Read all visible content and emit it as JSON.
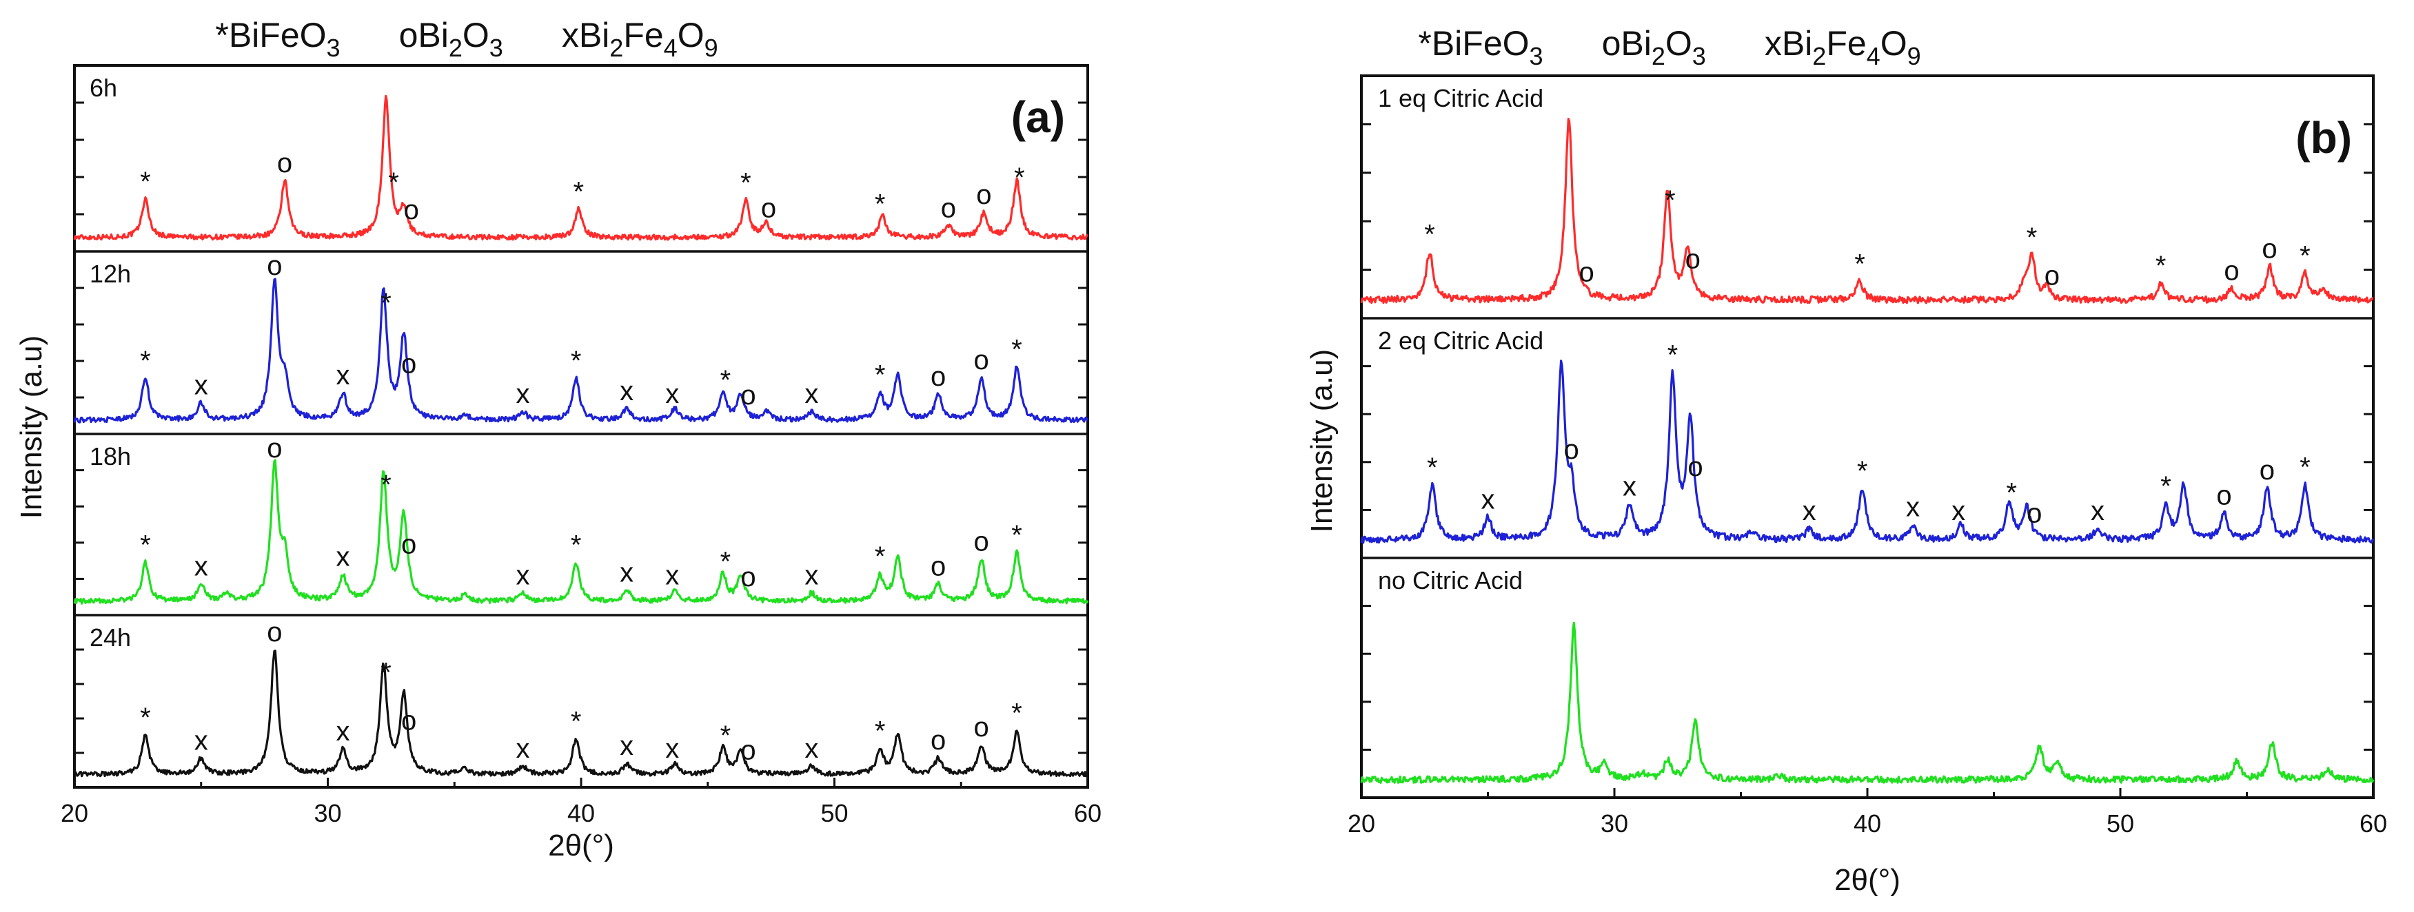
{
  "legend": [
    "*BiFeO3",
    "oBi2O3",
    "xBi2Fe4O9"
  ],
  "legend_parts": [
    {
      "symbol": "*",
      "formula": [
        [
          "Bi",
          ""
        ],
        [
          "FeO",
          "3"
        ]
      ]
    },
    {
      "symbol": "o",
      "formula": [
        [
          "Bi",
          "2"
        ],
        [
          "O",
          "3"
        ]
      ]
    },
    {
      "symbol": "x",
      "formula": [
        [
          "Bi",
          "2"
        ],
        [
          "Fe",
          "4"
        ],
        [
          "O",
          "9"
        ]
      ]
    }
  ],
  "chart_data": [
    {
      "type": "line",
      "panel": "(a)",
      "title": "",
      "xlabel": "2θ(°)",
      "ylabel": "Intensity (a.u)",
      "xlim": [
        20,
        60
      ],
      "xticks": [
        20,
        30,
        40,
        50,
        60
      ],
      "series": [
        {
          "name": "6h",
          "color": "#ff2b2b",
          "peaks": [
            [
              22.8,
              0.27
            ],
            [
              28.3,
              0.4
            ],
            [
              32.3,
              0.98
            ],
            [
              33.0,
              0.18
            ],
            [
              39.9,
              0.2
            ],
            [
              46.5,
              0.26
            ],
            [
              47.3,
              0.1
            ],
            [
              51.9,
              0.15
            ],
            [
              54.5,
              0.08
            ],
            [
              55.9,
              0.17
            ],
            [
              57.2,
              0.4
            ]
          ],
          "markers": [
            {
              "x": 22.8,
              "label": "*"
            },
            {
              "x": 28.3,
              "label": "o"
            },
            {
              "x": 32.6,
              "label": "*"
            },
            {
              "x": 33.3,
              "label": "o"
            },
            {
              "x": 39.9,
              "label": "*"
            },
            {
              "x": 46.5,
              "label": "*"
            },
            {
              "x": 47.4,
              "label": "o"
            },
            {
              "x": 51.8,
              "label": "*"
            },
            {
              "x": 54.5,
              "label": "o"
            },
            {
              "x": 55.9,
              "label": "o"
            },
            {
              "x": 57.3,
              "label": "*"
            }
          ]
        },
        {
          "name": "12h",
          "color": "#1e22d6",
          "peaks": [
            [
              22.8,
              0.3
            ],
            [
              25.0,
              0.12
            ],
            [
              27.9,
              0.98
            ],
            [
              28.3,
              0.25
            ],
            [
              30.6,
              0.18
            ],
            [
              32.2,
              0.92
            ],
            [
              33.0,
              0.6
            ],
            [
              35.4,
              0.04
            ],
            [
              37.7,
              0.06
            ],
            [
              39.8,
              0.3
            ],
            [
              41.8,
              0.08
            ],
            [
              43.7,
              0.08
            ],
            [
              45.6,
              0.2
            ],
            [
              46.3,
              0.18
            ],
            [
              47.3,
              0.06
            ],
            [
              49.1,
              0.06
            ],
            [
              51.8,
              0.18
            ],
            [
              52.5,
              0.32
            ],
            [
              54.1,
              0.18
            ],
            [
              55.8,
              0.3
            ],
            [
              57.2,
              0.38
            ]
          ],
          "markers": [
            {
              "x": 22.8,
              "label": "*"
            },
            {
              "x": 25.0,
              "label": "x"
            },
            {
              "x": 27.9,
              "label": "o"
            },
            {
              "x": 30.6,
              "label": "x"
            },
            {
              "x": 32.3,
              "label": "*"
            },
            {
              "x": 33.2,
              "label": "o"
            },
            {
              "x": 37.7,
              "label": "x"
            },
            {
              "x": 39.8,
              "label": "*"
            },
            {
              "x": 41.8,
              "label": "x"
            },
            {
              "x": 43.6,
              "label": "x"
            },
            {
              "x": 45.7,
              "label": "*"
            },
            {
              "x": 46.6,
              "label": "o"
            },
            {
              "x": 49.1,
              "label": "x"
            },
            {
              "x": 51.8,
              "label": "*"
            },
            {
              "x": 54.1,
              "label": "o"
            },
            {
              "x": 55.8,
              "label": "o"
            },
            {
              "x": 57.2,
              "label": "*"
            }
          ]
        },
        {
          "name": "18h",
          "color": "#20e020",
          "peaks": [
            [
              22.8,
              0.28
            ],
            [
              25.0,
              0.12
            ],
            [
              26.0,
              0.05
            ],
            [
              27.9,
              0.98
            ],
            [
              28.3,
              0.3
            ],
            [
              30.6,
              0.18
            ],
            [
              32.2,
              0.92
            ],
            [
              33.0,
              0.62
            ],
            [
              35.4,
              0.04
            ],
            [
              37.7,
              0.06
            ],
            [
              39.8,
              0.28
            ],
            [
              41.8,
              0.08
            ],
            [
              43.7,
              0.08
            ],
            [
              45.6,
              0.2
            ],
            [
              46.3,
              0.18
            ],
            [
              49.1,
              0.06
            ],
            [
              51.8,
              0.18
            ],
            [
              52.5,
              0.32
            ],
            [
              54.1,
              0.12
            ],
            [
              55.8,
              0.3
            ],
            [
              57.2,
              0.35
            ]
          ],
          "markers": [
            {
              "x": 22.8,
              "label": "*"
            },
            {
              "x": 25.0,
              "label": "x"
            },
            {
              "x": 27.9,
              "label": "o"
            },
            {
              "x": 30.6,
              "label": "x"
            },
            {
              "x": 32.3,
              "label": "*"
            },
            {
              "x": 33.2,
              "label": "o"
            },
            {
              "x": 37.7,
              "label": "x"
            },
            {
              "x": 39.8,
              "label": "*"
            },
            {
              "x": 41.8,
              "label": "x"
            },
            {
              "x": 43.6,
              "label": "x"
            },
            {
              "x": 45.7,
              "label": "*"
            },
            {
              "x": 46.6,
              "label": "o"
            },
            {
              "x": 49.1,
              "label": "x"
            },
            {
              "x": 51.8,
              "label": "*"
            },
            {
              "x": 54.1,
              "label": "o"
            },
            {
              "x": 55.8,
              "label": "o"
            },
            {
              "x": 57.2,
              "label": "*"
            }
          ]
        },
        {
          "name": "24h",
          "color": "#111111",
          "peaks": [
            [
              22.8,
              0.3
            ],
            [
              25.0,
              0.12
            ],
            [
              27.9,
              0.95
            ],
            [
              30.6,
              0.18
            ],
            [
              32.2,
              0.82
            ],
            [
              33.0,
              0.6
            ],
            [
              35.4,
              0.04
            ],
            [
              37.7,
              0.06
            ],
            [
              39.8,
              0.27
            ],
            [
              41.8,
              0.08
            ],
            [
              43.7,
              0.08
            ],
            [
              45.6,
              0.2
            ],
            [
              46.3,
              0.18
            ],
            [
              49.1,
              0.06
            ],
            [
              51.8,
              0.18
            ],
            [
              52.5,
              0.3
            ],
            [
              54.1,
              0.12
            ],
            [
              55.8,
              0.22
            ],
            [
              57.2,
              0.33
            ]
          ],
          "markers": [
            {
              "x": 22.8,
              "label": "*"
            },
            {
              "x": 25.0,
              "label": "x"
            },
            {
              "x": 27.9,
              "label": "o"
            },
            {
              "x": 30.6,
              "label": "x"
            },
            {
              "x": 32.3,
              "label": "*"
            },
            {
              "x": 33.2,
              "label": "o"
            },
            {
              "x": 37.7,
              "label": "x"
            },
            {
              "x": 39.8,
              "label": "*"
            },
            {
              "x": 41.8,
              "label": "x"
            },
            {
              "x": 43.6,
              "label": "x"
            },
            {
              "x": 45.7,
              "label": "*"
            },
            {
              "x": 46.6,
              "label": "o"
            },
            {
              "x": 49.1,
              "label": "x"
            },
            {
              "x": 51.8,
              "label": "*"
            },
            {
              "x": 54.1,
              "label": "o"
            },
            {
              "x": 55.8,
              "label": "o"
            },
            {
              "x": 57.2,
              "label": "*"
            }
          ]
        }
      ]
    },
    {
      "type": "line",
      "panel": "(b)",
      "title": "",
      "xlabel": "2θ(°)",
      "ylabel": "Intensity (a.u)",
      "xlim": [
        20,
        60
      ],
      "xticks": [
        20,
        30,
        40,
        50,
        60
      ],
      "series": [
        {
          "name": "1 eq Citric Acid",
          "color": "#ff2b2b",
          "peaks": [
            [
              22.7,
              0.26
            ],
            [
              28.2,
              0.98
            ],
            [
              32.1,
              0.58
            ],
            [
              32.9,
              0.26
            ],
            [
              39.7,
              0.1
            ],
            [
              46.2,
              0.08
            ],
            [
              46.5,
              0.22
            ],
            [
              47.1,
              0.06
            ],
            [
              51.6,
              0.09
            ],
            [
              54.4,
              0.06
            ],
            [
              55.9,
              0.18
            ],
            [
              57.3,
              0.14
            ],
            [
              58.0,
              0.06
            ]
          ],
          "markers": [
            {
              "x": 22.7,
              "label": "*"
            },
            {
              "x": 28.9,
              "label": "o"
            },
            {
              "x": 32.2,
              "label": "*"
            },
            {
              "x": 33.1,
              "label": "o"
            },
            {
              "x": 39.7,
              "label": "*"
            },
            {
              "x": 46.5,
              "label": "*"
            },
            {
              "x": 47.3,
              "label": "o"
            },
            {
              "x": 51.6,
              "label": "*"
            },
            {
              "x": 54.4,
              "label": "o"
            },
            {
              "x": 55.9,
              "label": "o"
            },
            {
              "x": 57.3,
              "label": "*"
            }
          ]
        },
        {
          "name": "2 eq Citric Acid",
          "color": "#1e22d6",
          "peaks": [
            [
              22.8,
              0.3
            ],
            [
              25.0,
              0.12
            ],
            [
              27.9,
              0.95
            ],
            [
              28.3,
              0.25
            ],
            [
              30.6,
              0.18
            ],
            [
              32.3,
              0.88
            ],
            [
              33.0,
              0.65
            ],
            [
              35.4,
              0.04
            ],
            [
              37.7,
              0.06
            ],
            [
              39.8,
              0.28
            ],
            [
              41.8,
              0.08
            ],
            [
              43.7,
              0.08
            ],
            [
              45.6,
              0.2
            ],
            [
              46.3,
              0.18
            ],
            [
              49.1,
              0.06
            ],
            [
              51.8,
              0.18
            ],
            [
              52.5,
              0.3
            ],
            [
              54.1,
              0.14
            ],
            [
              55.8,
              0.28
            ],
            [
              57.3,
              0.3
            ]
          ],
          "markers": [
            {
              "x": 22.8,
              "label": "*"
            },
            {
              "x": 25.0,
              "label": "x"
            },
            {
              "x": 28.3,
              "label": "o"
            },
            {
              "x": 30.6,
              "label": "x"
            },
            {
              "x": 32.3,
              "label": "*"
            },
            {
              "x": 33.2,
              "label": "o"
            },
            {
              "x": 37.7,
              "label": "x"
            },
            {
              "x": 39.8,
              "label": "*"
            },
            {
              "x": 41.8,
              "label": "x"
            },
            {
              "x": 43.6,
              "label": "x"
            },
            {
              "x": 45.7,
              "label": "*"
            },
            {
              "x": 46.6,
              "label": "o"
            },
            {
              "x": 49.1,
              "label": "x"
            },
            {
              "x": 51.8,
              "label": "*"
            },
            {
              "x": 54.1,
              "label": "o"
            },
            {
              "x": 55.8,
              "label": "o"
            },
            {
              "x": 57.3,
              "label": "*"
            }
          ]
        },
        {
          "name": "no Citric Acid",
          "color": "#20e020",
          "peaks": [
            [
              28.4,
              0.85
            ],
            [
              29.6,
              0.08
            ],
            [
              31.1,
              0.03
            ],
            [
              32.1,
              0.1
            ],
            [
              33.2,
              0.32
            ],
            [
              36.5,
              0.02
            ],
            [
              46.8,
              0.18
            ],
            [
              47.5,
              0.1
            ],
            [
              54.6,
              0.1
            ],
            [
              56.0,
              0.2
            ],
            [
              58.2,
              0.06
            ]
          ],
          "markers": []
        }
      ]
    }
  ]
}
